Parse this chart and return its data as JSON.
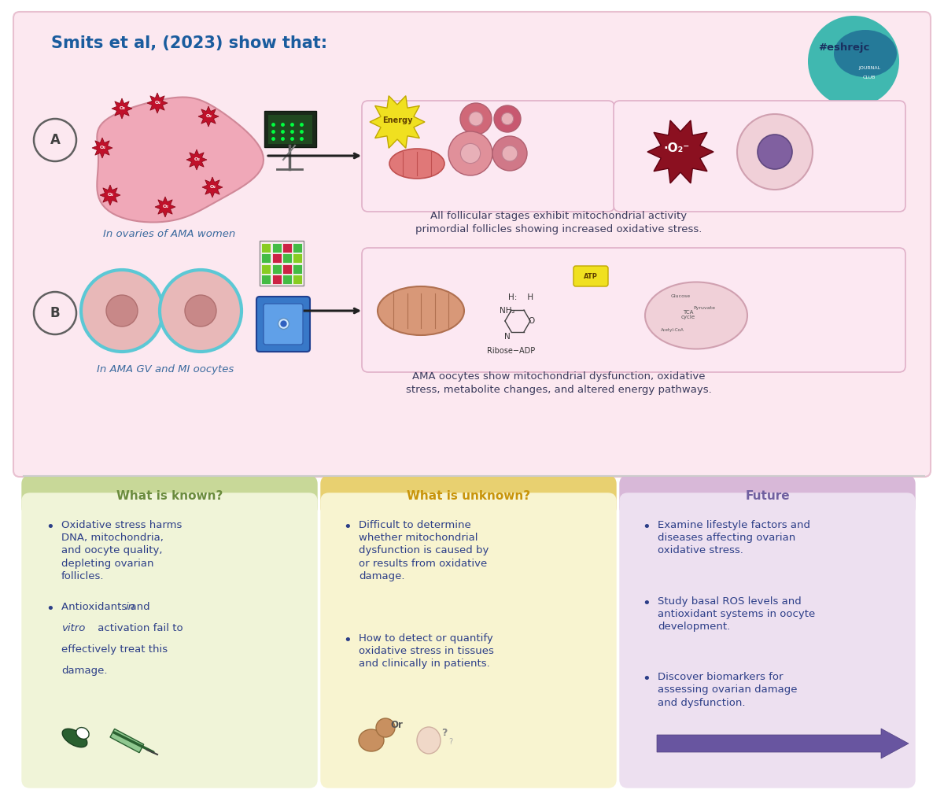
{
  "title": "Smits et al, (2023) show that:",
  "title_color": "#1a5c9e",
  "title_fontsize": 15,
  "top_bg": "#fce8f0",
  "top_border": "#e8c0d0",
  "outer_bg": "#ffffff",
  "section_a_sub": "In ovaries of AMA women",
  "section_b_sub": "In AMA GV and MI oocytes",
  "section_a_caption": "All follicular stages exhibit mitochondrial activity\nprimordial follicles showing increased oxidative stress.",
  "section_b_caption": "AMA oocytes show mitochondrial dysfunction, oxidative\nstress, metabolite changes, and altered energy pathways.",
  "caption_color": "#3a3a5c",
  "label_color": "#3a6a9e",
  "res_box_bg": "#fce8f2",
  "res_box_border": "#e0b0c8",
  "circle_border": "#5bc8d5",
  "circle_fill": "#e8b8b8",
  "circle_inner": "#c88888",
  "ovary_fill": "#f0a8b8",
  "ovary_border": "#d08898",
  "known_title": "What is known?",
  "unknown_title": "What is unknown?",
  "future_title": "Future",
  "known_title_color": "#6b8c3e",
  "unknown_title_color": "#c8940a",
  "future_title_color": "#7060a0",
  "known_header_bg": "#c8d898",
  "unknown_header_bg": "#e8d070",
  "future_header_bg": "#d8b8d8",
  "known_body_bg": "#f0f4d8",
  "unknown_body_bg": "#f8f4d0",
  "future_body_bg": "#ede0f0",
  "text_color": "#2c3e88",
  "bullet_color": "#2c3e88",
  "known_bullet1_normal": "Oxidative stress harms\nDNA, mitochondria,\nand oocyte quality,\ndepleting ovarian\nfollicles.",
  "known_bullet2_pre": "Antioxidants and ",
  "known_bullet2_italic": "in\nvitro",
  "known_bullet2_post": " activation fail to\neffectively treat this\ndamage.",
  "unknown_bullet1": "Difficult to determine\nwhether mitochondrial\ndysfunction is caused by\nor results from oxidative\ndamage.",
  "unknown_bullet2": "How to detect or quantify\noxidative stress in tissues\nand clinically in patients.",
  "future_bullet1": "Examine lifestyle factors and\ndiseases affecting ovarian\noxidative stress.",
  "future_bullet2": "Study basal ROS levels and\nantioxidant systems in oocyte\ndevelopment.",
  "future_bullet3": "Discover biomarkers for\nassessing ovarian damage\nand dysfunction.",
  "divider_color": "#cccccc",
  "arrow_color": "#6855a0",
  "bottom_bg": "#f8f8f8"
}
